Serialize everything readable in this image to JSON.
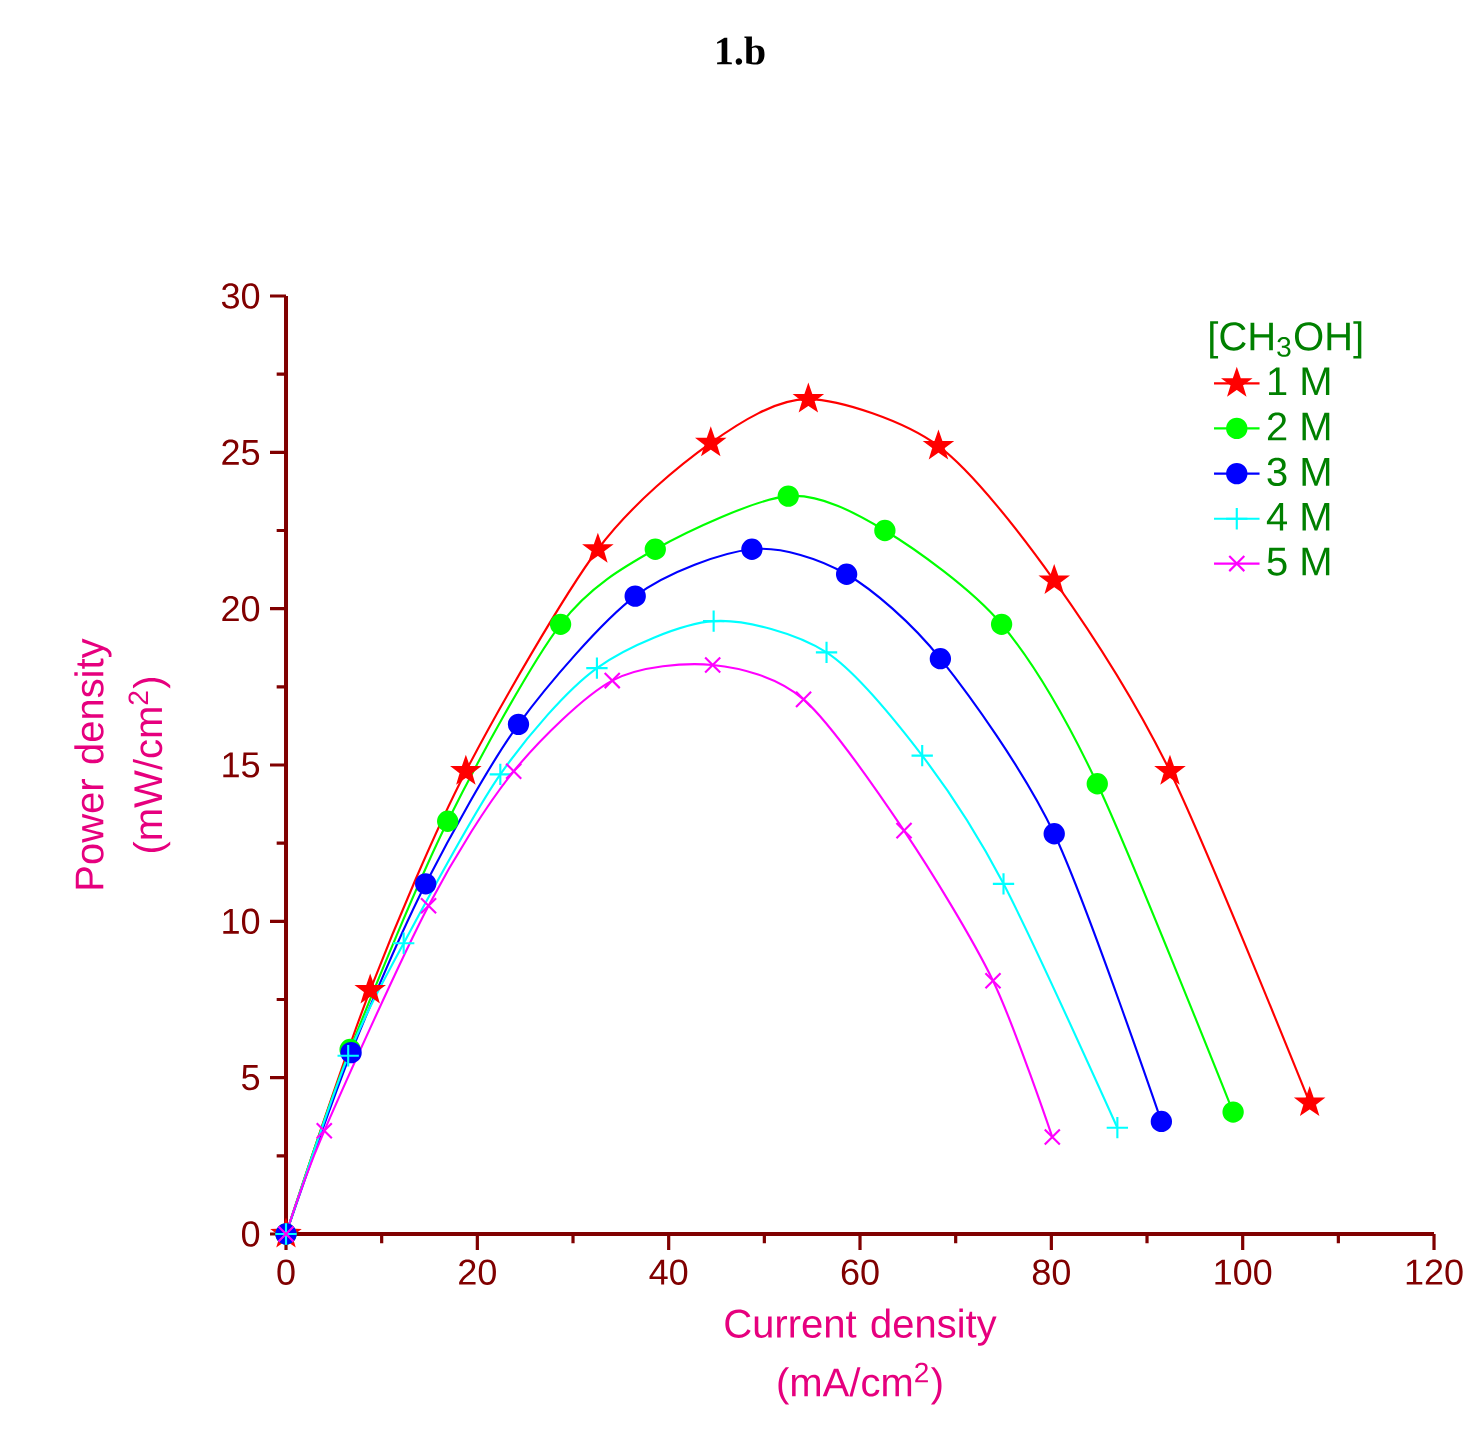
{
  "chart_data": {
    "type": "line",
    "title": "1.b",
    "xlabel": "Current density (mA/cm$^{2}$)",
    "ylabel": "Power density (mW/cm$^{2}$)",
    "legend_title": "[CH$_{3}$OH]",
    "legend": "top right",
    "grid": false,
    "xlim": [
      0,
      120
    ],
    "xticks": [
      0,
      20,
      40,
      60,
      80,
      100,
      120
    ],
    "ylim": [
      0,
      30
    ],
    "yticks": [
      0,
      5,
      10,
      15,
      20,
      25,
      30
    ],
    "series": [
      {
        "name": "1 M",
        "color": "#ff0000",
        "marker": "star",
        "x": [
          0,
          8.8,
          18.8,
          32.6,
          44.4,
          54.6,
          68.2,
          80.3,
          92.4,
          107.0
        ],
        "values": [
          0,
          7.8,
          14.8,
          21.9,
          25.3,
          26.7,
          25.2,
          20.9,
          14.8,
          4.2
        ]
      },
      {
        "name": "2 M",
        "color": "#00ff00",
        "marker": "circle",
        "x": [
          0,
          6.7,
          16.9,
          28.7,
          38.6,
          52.5,
          62.6,
          74.8,
          84.8,
          99.0
        ],
        "values": [
          0,
          5.9,
          13.2,
          19.5,
          21.9,
          23.6,
          22.5,
          19.5,
          14.4,
          3.9
        ]
      },
      {
        "name": "3 M",
        "color": "#0000ff",
        "marker": "circle",
        "x": [
          0,
          6.8,
          14.6,
          24.3,
          36.5,
          48.7,
          58.6,
          68.4,
          80.3,
          91.5
        ],
        "values": [
          0,
          5.8,
          11.2,
          16.3,
          20.4,
          21.9,
          21.1,
          18.4,
          12.8,
          3.6
        ]
      },
      {
        "name": "4 M",
        "color": "#00ffff",
        "marker": "plus",
        "x": [
          0,
          6.5,
          12.3,
          22.4,
          32.5,
          44.7,
          56.5,
          66.5,
          75.0,
          86.9
        ],
        "values": [
          0,
          5.7,
          9.3,
          14.7,
          18.1,
          19.6,
          18.6,
          15.3,
          11.2,
          3.4
        ]
      },
      {
        "name": "5 M",
        "color": "#ff00ff",
        "marker": "cross",
        "x": [
          0,
          4.0,
          14.9,
          23.8,
          34.1,
          44.6,
          54.1,
          64.6,
          73.9,
          80.1
        ],
        "values": [
          0,
          3.3,
          10.5,
          14.8,
          17.7,
          18.2,
          17.1,
          12.9,
          8.1,
          3.1
        ]
      }
    ]
  }
}
